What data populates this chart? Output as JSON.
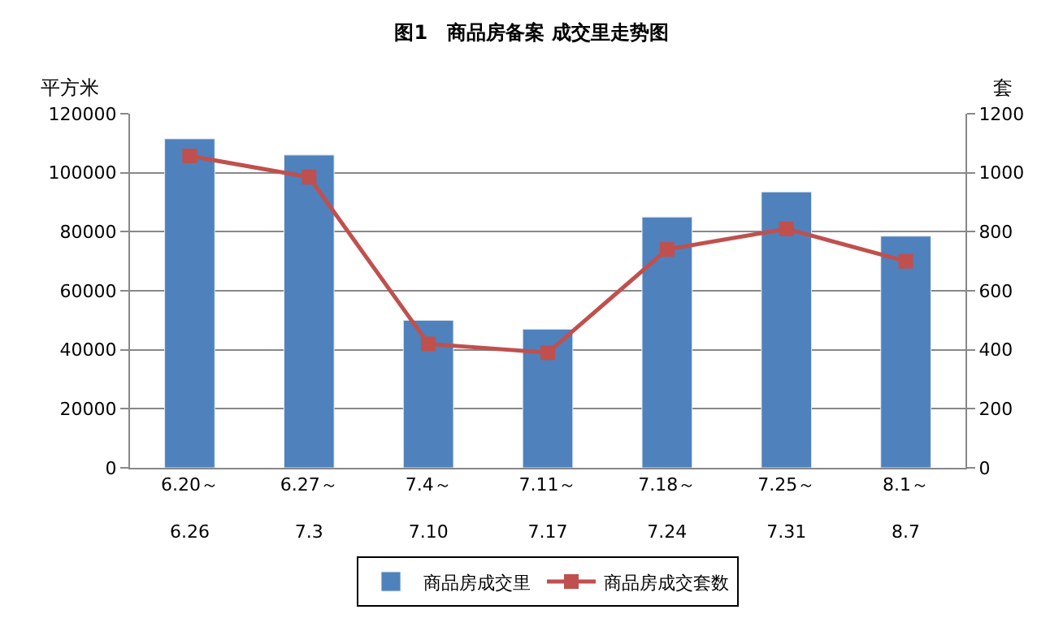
{
  "chart_data": {
    "type": "bar",
    "title": "图1　商品房备案 成交里走势图",
    "ylabel": "平方米",
    "y2label": "套",
    "categories": [
      "6.20～\n\n6.26",
      "6.27～\n\n7.3",
      "7.4～\n\n7.10",
      "7.11～\n\n7.17",
      "7.18～\n\n7.24",
      "7.25～\n\n7.31",
      "8.1～\n\n8.7"
    ],
    "series": [
      {
        "name": "商品房成交里",
        "color": "#4f81bd",
        "values": [
          111500,
          106000,
          50000,
          47000,
          85000,
          93500,
          78500
        ]
      },
      {
        "name": "商品房成交套数",
        "type": "line",
        "axis": "y2",
        "color": "#c0504d",
        "marker": "square",
        "values": [
          1057,
          985,
          420,
          390,
          740,
          810,
          700
        ]
      }
    ],
    "ylim": [
      0,
      120000
    ],
    "yticks": [
      0,
      20000,
      40000,
      60000,
      80000,
      100000,
      120000
    ],
    "y2lim": [
      0,
      1200
    ],
    "y2ticks": [
      0,
      200,
      400,
      600,
      800,
      1000,
      1200
    ],
    "grid": "y",
    "legend": "bottom"
  }
}
